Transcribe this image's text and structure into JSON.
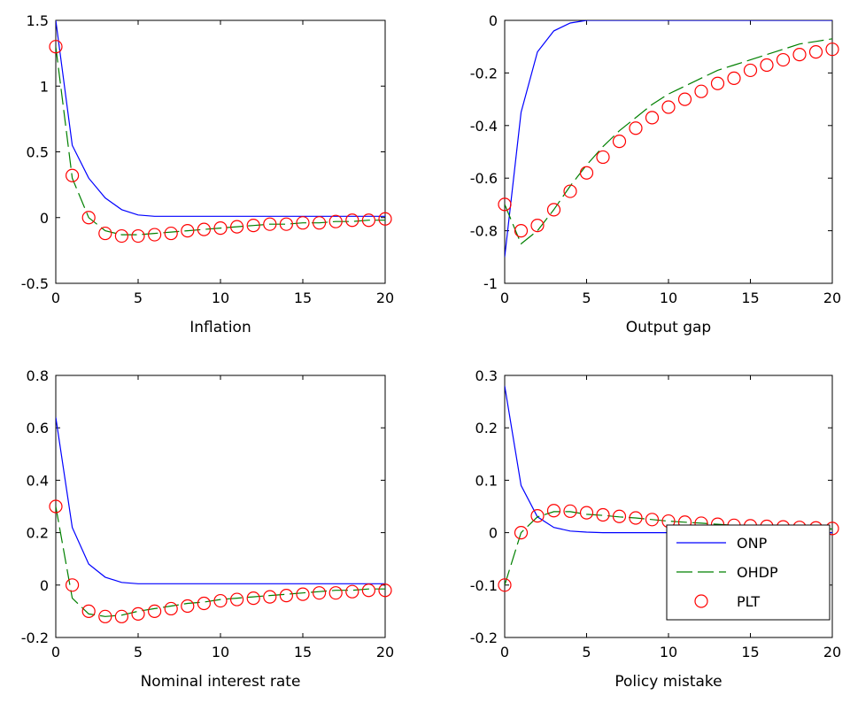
{
  "chart_data": [
    {
      "type": "line",
      "xlabel": "Inflation",
      "xlim": [
        0,
        20
      ],
      "ylim": [
        -0.5,
        1.5
      ],
      "xticks": [
        "0",
        "5",
        "10",
        "15",
        "20"
      ],
      "yticks": [
        "-0.5",
        "0",
        "0.5",
        "1",
        "1.5"
      ],
      "grid": false,
      "series": [
        {
          "name": "ONP",
          "color": "#0000ff",
          "style": "solid",
          "x": [
            0,
            1,
            2,
            3,
            4,
            5,
            6,
            7,
            8,
            9,
            10,
            11,
            12,
            13,
            14,
            15,
            16,
            17,
            18,
            19,
            20
          ],
          "y": [
            1.5,
            0.55,
            0.3,
            0.15,
            0.06,
            0.02,
            0.01,
            0.01,
            0.01,
            0.01,
            0.01,
            0.01,
            0.01,
            0.01,
            0.01,
            0.01,
            0.01,
            0.01,
            0.01,
            0.01,
            0.01
          ]
        },
        {
          "name": "OHDP",
          "color": "#008000",
          "style": "dashed",
          "x": [
            0,
            1,
            2,
            3,
            4,
            5,
            6,
            7,
            8,
            9,
            10,
            11,
            12,
            13,
            14,
            15,
            16,
            17,
            18,
            19,
            20
          ],
          "y": [
            1.3,
            0.3,
            0.0,
            -0.1,
            -0.13,
            -0.13,
            -0.12,
            -0.11,
            -0.1,
            -0.09,
            -0.08,
            -0.07,
            -0.06,
            -0.05,
            -0.05,
            -0.04,
            -0.04,
            -0.03,
            -0.03,
            -0.02,
            -0.02
          ]
        },
        {
          "name": "PLT",
          "color": "#ff0000",
          "style": "circles",
          "x": [
            0,
            1,
            2,
            3,
            4,
            5,
            6,
            7,
            8,
            9,
            10,
            11,
            12,
            13,
            14,
            15,
            16,
            17,
            18,
            19,
            20
          ],
          "y": [
            1.3,
            0.32,
            0.0,
            -0.12,
            -0.14,
            -0.14,
            -0.13,
            -0.12,
            -0.1,
            -0.09,
            -0.08,
            -0.07,
            -0.06,
            -0.05,
            -0.05,
            -0.04,
            -0.04,
            -0.03,
            -0.02,
            -0.02,
            -0.01
          ]
        }
      ]
    },
    {
      "type": "line",
      "xlabel": "Output gap",
      "xlim": [
        0,
        20
      ],
      "ylim": [
        -1,
        0
      ],
      "xticks": [
        "0",
        "5",
        "10",
        "15",
        "20"
      ],
      "yticks": [
        "-1",
        "-0.8",
        "-0.6",
        "-0.4",
        "-0.2",
        "0"
      ],
      "grid": false,
      "series": [
        {
          "name": "ONP",
          "color": "#0000ff",
          "style": "solid",
          "x": [
            0,
            1,
            2,
            3,
            4,
            5,
            6,
            7,
            8,
            9,
            10,
            11,
            12,
            13,
            14,
            15,
            16,
            17,
            18,
            19,
            20
          ],
          "y": [
            -0.9,
            -0.35,
            -0.12,
            -0.04,
            -0.01,
            0.0,
            0.0,
            0.0,
            0.0,
            0.0,
            0.0,
            0.0,
            0.0,
            0.0,
            0.0,
            0.0,
            0.0,
            0.0,
            0.0,
            0.0,
            0.0
          ]
        },
        {
          "name": "OHDP",
          "color": "#008000",
          "style": "dashed",
          "x": [
            0,
            1,
            2,
            3,
            4,
            5,
            6,
            7,
            8,
            9,
            10,
            11,
            12,
            13,
            14,
            15,
            16,
            17,
            18,
            19,
            20
          ],
          "y": [
            -0.7,
            -0.85,
            -0.8,
            -0.72,
            -0.63,
            -0.55,
            -0.48,
            -0.42,
            -0.37,
            -0.32,
            -0.28,
            -0.25,
            -0.22,
            -0.19,
            -0.17,
            -0.15,
            -0.13,
            -0.11,
            -0.09,
            -0.08,
            -0.07
          ]
        },
        {
          "name": "PLT",
          "color": "#ff0000",
          "style": "circles",
          "x": [
            0,
            1,
            2,
            3,
            4,
            5,
            6,
            7,
            8,
            9,
            10,
            11,
            12,
            13,
            14,
            15,
            16,
            17,
            18,
            19,
            20
          ],
          "y": [
            -0.7,
            -0.8,
            -0.78,
            -0.72,
            -0.65,
            -0.58,
            -0.52,
            -0.46,
            -0.41,
            -0.37,
            -0.33,
            -0.3,
            -0.27,
            -0.24,
            -0.22,
            -0.19,
            -0.17,
            -0.15,
            -0.13,
            -0.12,
            -0.11
          ]
        }
      ]
    },
    {
      "type": "line",
      "xlabel": "Nominal interest rate",
      "xlim": [
        0,
        20
      ],
      "ylim": [
        -0.2,
        0.8
      ],
      "xticks": [
        "0",
        "5",
        "10",
        "15",
        "20"
      ],
      "yticks": [
        "-0.2",
        "0",
        "0.2",
        "0.4",
        "0.6",
        "0.8"
      ],
      "grid": false,
      "series": [
        {
          "name": "ONP",
          "color": "#0000ff",
          "style": "solid",
          "x": [
            0,
            1,
            2,
            3,
            4,
            5,
            6,
            7,
            8,
            9,
            10,
            11,
            12,
            13,
            14,
            15,
            16,
            17,
            18,
            19,
            20
          ],
          "y": [
            0.64,
            0.22,
            0.08,
            0.03,
            0.01,
            0.005,
            0.005,
            0.005,
            0.005,
            0.005,
            0.005,
            0.005,
            0.005,
            0.005,
            0.005,
            0.005,
            0.005,
            0.005,
            0.005,
            0.005,
            0.005
          ]
        },
        {
          "name": "OHDP",
          "color": "#008000",
          "style": "dashed",
          "x": [
            0,
            1,
            2,
            3,
            4,
            5,
            6,
            7,
            8,
            9,
            10,
            11,
            12,
            13,
            14,
            15,
            16,
            17,
            18,
            19,
            20
          ],
          "y": [
            0.3,
            -0.05,
            -0.11,
            -0.12,
            -0.115,
            -0.1,
            -0.09,
            -0.08,
            -0.07,
            -0.065,
            -0.055,
            -0.05,
            -0.045,
            -0.04,
            -0.035,
            -0.03,
            -0.025,
            -0.02,
            -0.02,
            -0.015,
            -0.015
          ]
        },
        {
          "name": "PLT",
          "color": "#ff0000",
          "style": "circles",
          "x": [
            0,
            1,
            2,
            3,
            4,
            5,
            6,
            7,
            8,
            9,
            10,
            11,
            12,
            13,
            14,
            15,
            16,
            17,
            18,
            19,
            20
          ],
          "y": [
            0.3,
            0.0,
            -0.1,
            -0.12,
            -0.12,
            -0.11,
            -0.1,
            -0.09,
            -0.08,
            -0.07,
            -0.06,
            -0.055,
            -0.05,
            -0.045,
            -0.04,
            -0.035,
            -0.03,
            -0.03,
            -0.025,
            -0.02,
            -0.02
          ]
        }
      ]
    },
    {
      "type": "line",
      "xlabel": "Policy mistake",
      "xlim": [
        0,
        20
      ],
      "ylim": [
        -0.2,
        0.3
      ],
      "xticks": [
        "0",
        "5",
        "10",
        "15",
        "20"
      ],
      "yticks": [
        "-0.2",
        "-0.1",
        "0",
        "0.1",
        "0.2",
        "0.3"
      ],
      "grid": false,
      "legend": {
        "placement": "bottom-right",
        "entries": [
          "ONP",
          "OHDP",
          "PLT"
        ]
      },
      "series": [
        {
          "name": "ONP",
          "color": "#0000ff",
          "style": "solid",
          "x": [
            0,
            1,
            2,
            3,
            4,
            5,
            6,
            7,
            8,
            9,
            10,
            11,
            12,
            13,
            14,
            15,
            16,
            17,
            18,
            19,
            20
          ],
          "y": [
            0.28,
            0.09,
            0.03,
            0.01,
            0.003,
            0.001,
            0.0,
            0.0,
            0.0,
            0.0,
            0.0,
            0.0,
            0.0,
            0.0,
            0.0,
            0.0,
            0.0,
            0.0,
            0.0,
            0.0,
            0.0
          ]
        },
        {
          "name": "OHDP",
          "color": "#008000",
          "style": "dashed",
          "x": [
            0,
            1,
            2,
            3,
            4,
            5,
            6,
            7,
            8,
            9,
            10,
            11,
            12,
            13,
            14,
            15,
            16,
            17,
            18,
            19,
            20
          ],
          "y": [
            -0.1,
            0.0,
            0.03,
            0.04,
            0.04,
            0.035,
            0.033,
            0.03,
            0.028,
            0.025,
            0.022,
            0.02,
            0.018,
            0.016,
            0.014,
            0.012,
            0.011,
            0.01,
            0.009,
            0.008,
            0.007
          ]
        },
        {
          "name": "PLT",
          "color": "#ff0000",
          "style": "circles",
          "x": [
            0,
            1,
            2,
            3,
            4,
            5,
            6,
            7,
            8,
            9,
            10,
            11,
            12,
            13,
            14,
            15,
            16,
            17,
            18,
            19,
            20
          ],
          "y": [
            -0.1,
            0.0,
            0.032,
            0.042,
            0.041,
            0.038,
            0.034,
            0.031,
            0.028,
            0.025,
            0.022,
            0.02,
            0.018,
            0.016,
            0.014,
            0.013,
            0.012,
            0.011,
            0.01,
            0.009,
            0.008
          ]
        }
      ]
    }
  ]
}
